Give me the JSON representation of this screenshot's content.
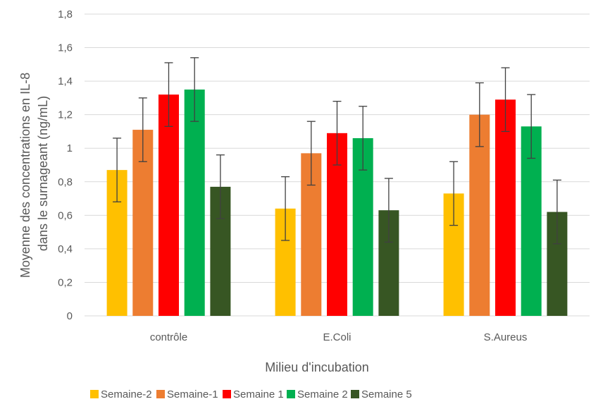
{
  "chart_data": {
    "type": "bar",
    "title": "",
    "xlabel": "Milieu d'incubation",
    "ylabel_lines": [
      "Moyenne des concentrations en IL-8",
      "dans le surnageant (ng/mL)"
    ],
    "categories": [
      "contrôle",
      "E.Coli",
      "S.Aureus"
    ],
    "ylim": [
      0,
      1.8
    ],
    "yticks": [
      0,
      0.2,
      0.4,
      0.6,
      0.8,
      1,
      1.2,
      1.4,
      1.6,
      1.8
    ],
    "ytick_labels": [
      "0",
      "0,2",
      "0,4",
      "0,6",
      "0,8",
      "1",
      "1,2",
      "1,4",
      "1,6",
      "1,8"
    ],
    "grid": true,
    "legend_position": "bottom",
    "series": [
      {
        "name": "Semaine-2",
        "color": "#FFC000",
        "values": [
          0.87,
          0.64,
          0.73
        ],
        "errors": [
          0.19,
          0.19,
          0.19
        ]
      },
      {
        "name": "Semaine-1",
        "color": "#ED7D31",
        "values": [
          1.11,
          0.97,
          1.2
        ],
        "errors": [
          0.19,
          0.19,
          0.19
        ]
      },
      {
        "name": "Semaine 1",
        "color": "#FF0000",
        "values": [
          1.32,
          1.09,
          1.29
        ],
        "errors": [
          0.19,
          0.19,
          0.19
        ]
      },
      {
        "name": "Semaine 2",
        "color": "#00B050",
        "values": [
          1.35,
          1.06,
          1.13
        ],
        "errors": [
          0.19,
          0.19,
          0.19
        ]
      },
      {
        "name": "Semaine 5",
        "color": "#375623",
        "values": [
          0.77,
          0.63,
          0.62
        ],
        "errors": [
          0.19,
          0.19,
          0.19
        ]
      }
    ]
  }
}
